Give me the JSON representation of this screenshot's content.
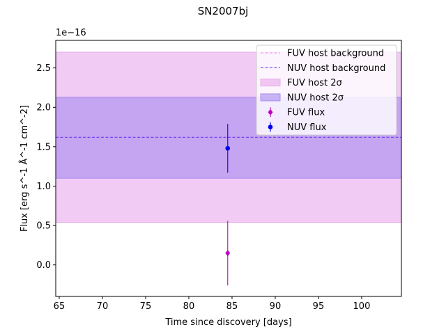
{
  "chart_data": {
    "type": "scatter",
    "title": "SN2007bj",
    "xlabel": "Time since discovery [days]",
    "ylabel": "Flux [erg s^-1 Å^-1 cm^-2]",
    "y_offset_label": "1e−16",
    "xlim": [
      64.6,
      104.6
    ],
    "ylim": [
      -0.4,
      2.85
    ],
    "xticks": [
      65,
      70,
      75,
      80,
      85,
      90,
      95,
      100
    ],
    "yticks": [
      0.0,
      0.5,
      1.0,
      1.5,
      2.0,
      2.5
    ],
    "ytick_labels": [
      "0.0",
      "0.5",
      "1.0",
      "1.5",
      "2.0",
      "2.5"
    ],
    "legend_position": "upper-right",
    "series": [
      {
        "name": "FUV host background",
        "kind": "hline",
        "y": 1.62,
        "color": "#ee82ee",
        "dash": true
      },
      {
        "name": "NUV host background",
        "kind": "hline",
        "y": 1.62,
        "color": "#6a3cf0",
        "dash": true
      },
      {
        "name": "FUV host 2σ",
        "kind": "band",
        "y_low": 0.54,
        "y_high": 2.7,
        "color": "#e8a9ec"
      },
      {
        "name": "NUV host 2σ",
        "kind": "band",
        "y_low": 1.1,
        "y_high": 2.13,
        "color": "#a88cf0"
      },
      {
        "name": "FUV flux",
        "kind": "errorbar",
        "marker": "diamond",
        "color": "#bf00bf",
        "points": [
          {
            "x": 84.5,
            "y": 0.15,
            "yerr": 0.41
          }
        ]
      },
      {
        "name": "NUV flux",
        "kind": "errorbar",
        "marker": "circle",
        "color": "#0000ee",
        "points": [
          {
            "x": 84.5,
            "y": 1.48,
            "yerr": 0.31
          }
        ]
      }
    ]
  }
}
